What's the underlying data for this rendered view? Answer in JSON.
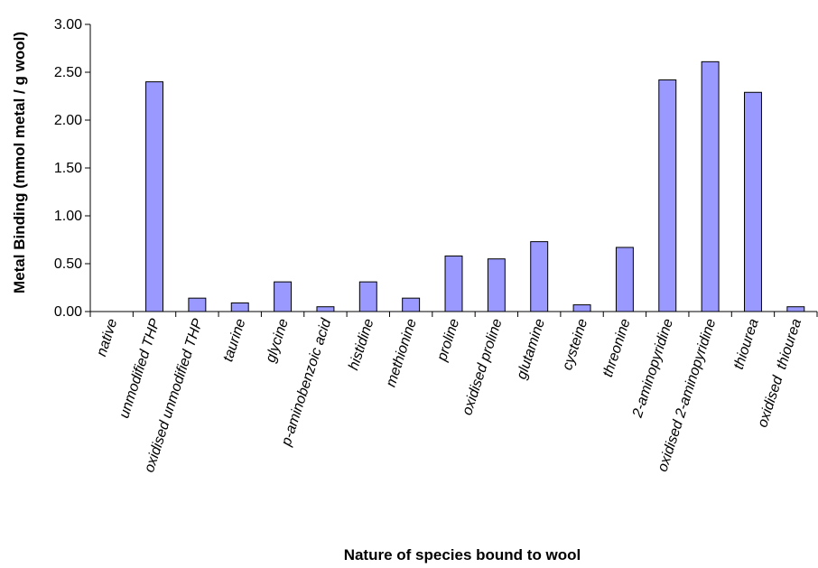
{
  "chart_data": {
    "type": "bar",
    "xlabel": "Nature of species bound to wool",
    "ylabel": "Metal Binding (mmol metal / g wool)",
    "ylim": [
      0,
      3.0
    ],
    "yticks": [
      "0.00",
      "0.50",
      "1.00",
      "1.50",
      "2.00",
      "2.50",
      "3.00"
    ],
    "grid": false,
    "legend": "none",
    "bar_color": "#9999ff",
    "categories": [
      "native",
      "unmodified THP",
      "oxidised unmodified THP",
      "taurine",
      "glycine",
      "p-aminobenzoic acid",
      "histidine",
      "methionine",
      "proline",
      "oxidised proline",
      "glutamine",
      "cysteine",
      "threonine",
      "2-aminopyridine",
      "oxidised 2-aminopyridine",
      "thiourea",
      "oxidised  thiourea"
    ],
    "values": [
      0,
      2.4,
      0.14,
      0.09,
      0.31,
      0.05,
      0.31,
      0.14,
      0.58,
      0.55,
      0.73,
      0.07,
      0.67,
      2.42,
      2.61,
      2.29,
      0.05
    ]
  }
}
